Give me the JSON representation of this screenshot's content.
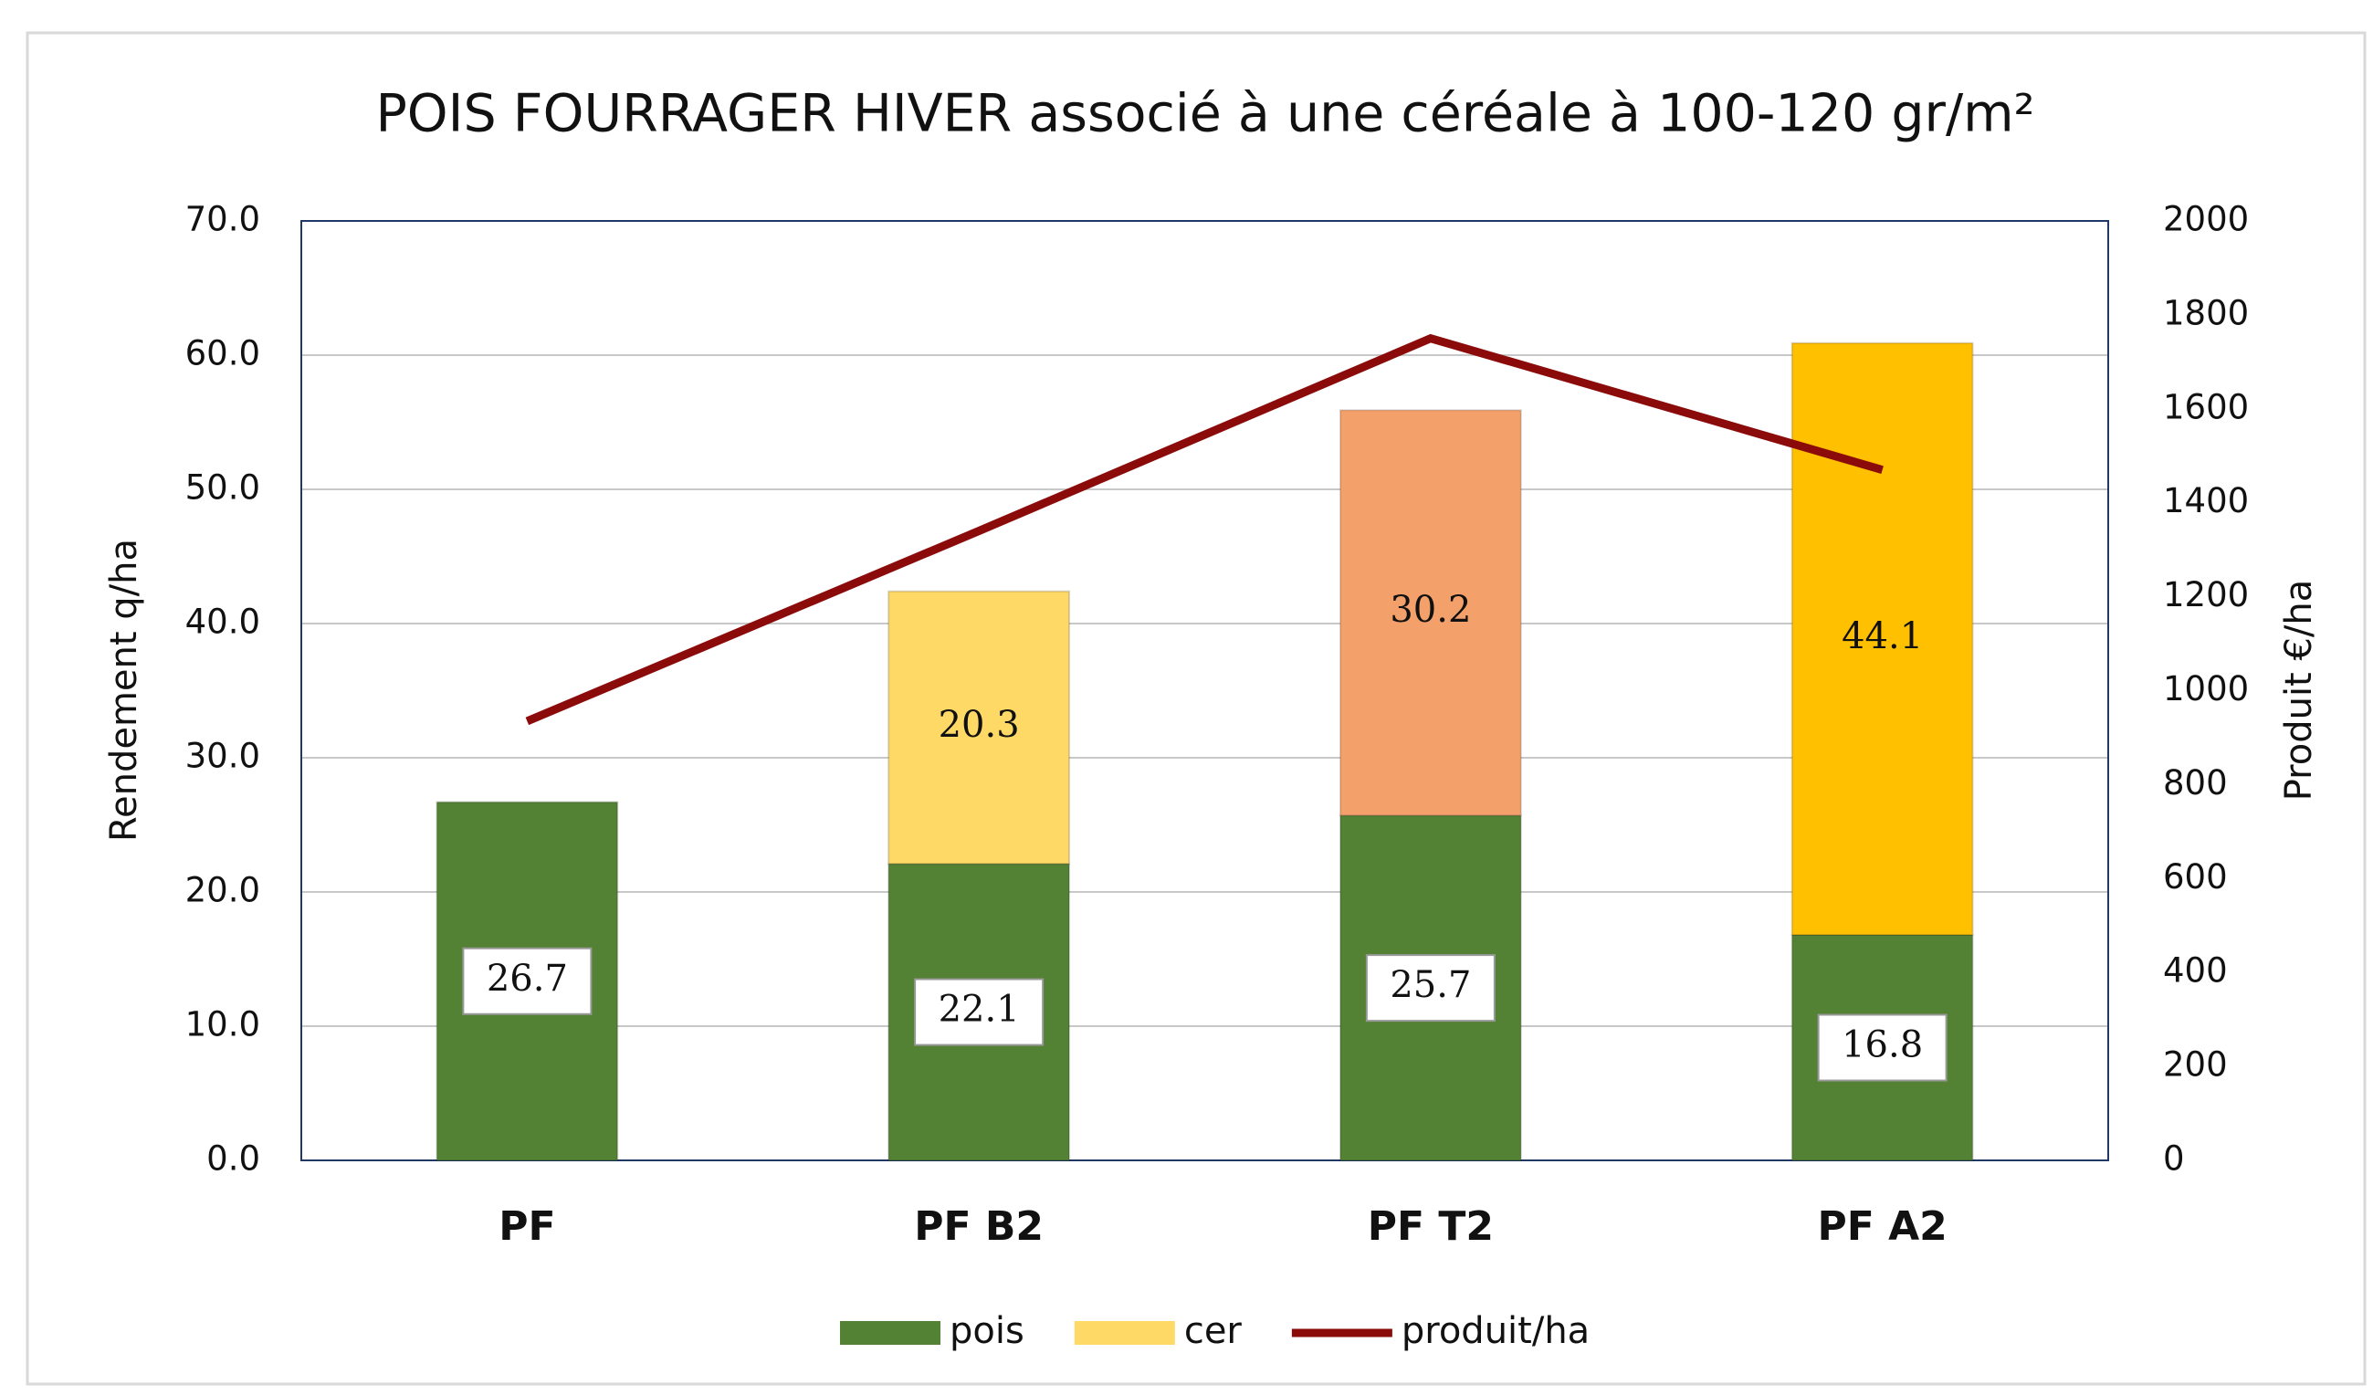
{
  "chart_data": {
    "type": "bar",
    "stacked": true,
    "title": "POIS FOURRAGER HIVER associé à une céréale à 100-120 gr/m²",
    "y_label": "Rendement   q/ha",
    "y2_label": "Produit  €/ha",
    "categories": [
      "PF",
      "PF B2",
      "PF T2",
      "PF A2"
    ],
    "series": [
      {
        "name": "pois",
        "type": "bar",
        "color": "#548235",
        "values": [
          26.7,
          22.1,
          25.7,
          16.8
        ]
      },
      {
        "name": "cer",
        "type": "bar",
        "color": "#ffd966",
        "colors": [
          null,
          "#ffd966",
          "#f4a06a",
          "#ffc000"
        ],
        "values": [
          null,
          20.3,
          30.2,
          44.1
        ]
      },
      {
        "name": "produit/ha",
        "type": "line",
        "axis": "y2",
        "color": "#8b0a0a",
        "values": [
          935,
          1340,
          1750,
          1470
        ]
      }
    ],
    "ylim": [
      0,
      70
    ],
    "yticks": [
      {
        "value": 0,
        "label": "0.0"
      },
      {
        "value": 10,
        "label": "10.0"
      },
      {
        "value": 20,
        "label": "20.0"
      },
      {
        "value": 30,
        "label": "30.0"
      },
      {
        "value": 40,
        "label": "40.0"
      },
      {
        "value": 50,
        "label": "50.0"
      },
      {
        "value": 60,
        "label": "60.0"
      },
      {
        "value": 70,
        "label": "70.0"
      }
    ],
    "y2lim": [
      0,
      2000
    ],
    "y2ticks": [
      0,
      200,
      400,
      600,
      800,
      1000,
      1200,
      1400,
      1600,
      1800,
      2000
    ],
    "grid": true,
    "legend": "bottom"
  }
}
